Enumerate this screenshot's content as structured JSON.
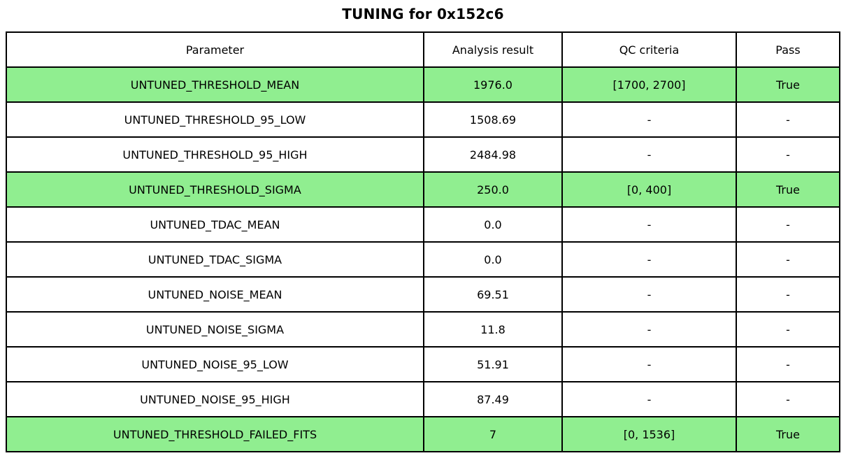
{
  "title": "TUNING for 0x152c6",
  "chart_data": {
    "type": "table",
    "title": "TUNING for 0x152c6",
    "columns": [
      "Parameter",
      "Analysis result",
      "QC criteria",
      "Pass"
    ],
    "rows": [
      {
        "parameter": "UNTUNED_THRESHOLD_MEAN",
        "result": "1976.0",
        "qc": "[1700, 2700]",
        "pass": "True",
        "highlight": true
      },
      {
        "parameter": "UNTUNED_THRESHOLD_95_LOW",
        "result": "1508.69",
        "qc": "-",
        "pass": "-",
        "highlight": false
      },
      {
        "parameter": "UNTUNED_THRESHOLD_95_HIGH",
        "result": "2484.98",
        "qc": "-",
        "pass": "-",
        "highlight": false
      },
      {
        "parameter": "UNTUNED_THRESHOLD_SIGMA",
        "result": "250.0",
        "qc": "[0, 400]",
        "pass": "True",
        "highlight": true
      },
      {
        "parameter": "UNTUNED_TDAC_MEAN",
        "result": "0.0",
        "qc": "-",
        "pass": "-",
        "highlight": false
      },
      {
        "parameter": "UNTUNED_TDAC_SIGMA",
        "result": "0.0",
        "qc": "-",
        "pass": "-",
        "highlight": false
      },
      {
        "parameter": "UNTUNED_NOISE_MEAN",
        "result": "69.51",
        "qc": "-",
        "pass": "-",
        "highlight": false
      },
      {
        "parameter": "UNTUNED_NOISE_SIGMA",
        "result": "11.8",
        "qc": "-",
        "pass": "-",
        "highlight": false
      },
      {
        "parameter": "UNTUNED_NOISE_95_LOW",
        "result": "51.91",
        "qc": "-",
        "pass": "-",
        "highlight": false
      },
      {
        "parameter": "UNTUNED_NOISE_95_HIGH",
        "result": "87.49",
        "qc": "-",
        "pass": "-",
        "highlight": false
      },
      {
        "parameter": "UNTUNED_THRESHOLD_FAILED_FITS",
        "result": "7",
        "qc": "[0, 1536]",
        "pass": "True",
        "highlight": true
      }
    ],
    "highlight_color": "#90ee90",
    "border_color": "#000000",
    "background_color": "#ffffff"
  }
}
